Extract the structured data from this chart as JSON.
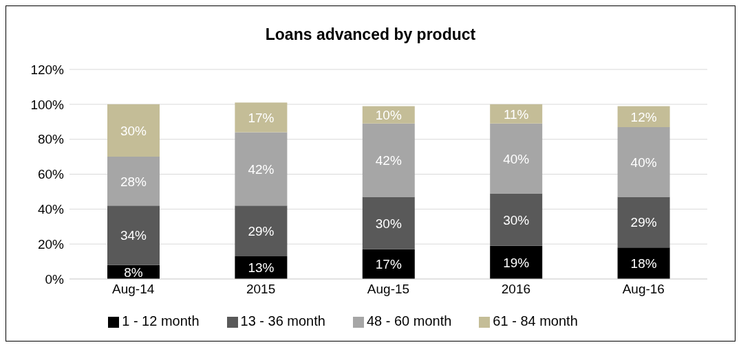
{
  "chart_data": {
    "type": "bar",
    "title": "Loans advanced by product",
    "stacked": true,
    "categories": [
      "Aug-14",
      "2015",
      "Aug-15",
      "2016",
      "Aug-16"
    ],
    "series": [
      {
        "name": "1 - 12 month",
        "color": "#000000",
        "values": [
          8,
          13,
          17,
          19,
          18
        ],
        "value_labels": [
          "8%",
          "13%",
          "17%",
          "19%",
          "18%"
        ]
      },
      {
        "name": "13 - 36 month",
        "color": "#595959",
        "values": [
          34,
          29,
          30,
          30,
          29
        ],
        "value_labels": [
          "34%",
          "29%",
          "30%",
          "30%",
          "29%"
        ]
      },
      {
        "name": "48 - 60 month",
        "color": "#a6a6a6",
        "values": [
          28,
          42,
          42,
          40,
          40
        ],
        "value_labels": [
          "28%",
          "42%",
          "42%",
          "40%",
          "40%"
        ]
      },
      {
        "name": "61 - 84 month",
        "color": "#c4bd97",
        "values": [
          30,
          17,
          10,
          11,
          12
        ],
        "value_labels": [
          "30%",
          "17%",
          "10%",
          "11%",
          "12%"
        ]
      }
    ],
    "ylim": [
      0,
      120
    ],
    "yticks": [
      {
        "value": 0,
        "label": "0%"
      },
      {
        "value": 20,
        "label": "20%"
      },
      {
        "value": 40,
        "label": "40%"
      },
      {
        "value": 60,
        "label": "60%"
      },
      {
        "value": 80,
        "label": "80%"
      },
      {
        "value": 100,
        "label": "100%"
      },
      {
        "value": 120,
        "label": "120%"
      }
    ],
    "grid": "y",
    "legend": "bottom"
  }
}
